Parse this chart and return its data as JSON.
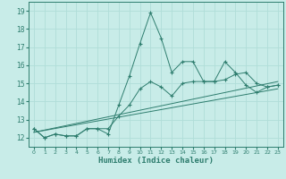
{
  "xlabel": "Humidex (Indice chaleur)",
  "xlim": [
    -0.5,
    23.5
  ],
  "ylim": [
    11.5,
    19.5
  ],
  "yticks": [
    12,
    13,
    14,
    15,
    16,
    17,
    18,
    19
  ],
  "xticks": [
    0,
    1,
    2,
    3,
    4,
    5,
    6,
    7,
    8,
    9,
    10,
    11,
    12,
    13,
    14,
    15,
    16,
    17,
    18,
    19,
    20,
    21,
    22,
    23
  ],
  "bg_color": "#c8ece8",
  "line_color": "#2e7d6e",
  "grid_color": "#b0ddd8",
  "lines": [
    {
      "x": [
        0,
        1,
        2,
        3,
        4,
        5,
        6,
        7,
        8,
        9,
        10,
        11,
        12,
        13,
        14,
        15,
        16,
        17,
        18,
        19,
        20,
        21,
        22,
        23
      ],
      "y": [
        12.5,
        12.0,
        12.2,
        12.1,
        12.1,
        12.5,
        12.5,
        12.2,
        13.8,
        15.4,
        17.2,
        18.9,
        17.5,
        15.6,
        16.2,
        16.2,
        15.1,
        15.1,
        16.2,
        15.6,
        14.9,
        14.5,
        14.8,
        14.9
      ],
      "marker": "+"
    },
    {
      "x": [
        0,
        1,
        2,
        3,
        4,
        5,
        6,
        7,
        8,
        9,
        10,
        11,
        12,
        13,
        14,
        15,
        16,
        17,
        18,
        19,
        20,
        21,
        22,
        23
      ],
      "y": [
        12.5,
        12.0,
        12.2,
        12.1,
        12.1,
        12.5,
        12.5,
        12.5,
        13.2,
        13.8,
        14.7,
        15.1,
        14.8,
        14.3,
        15.0,
        15.1,
        15.1,
        15.1,
        15.2,
        15.5,
        15.6,
        15.0,
        14.8,
        14.9
      ],
      "marker": "+"
    },
    {
      "x": [
        0,
        23
      ],
      "y": [
        12.3,
        14.7
      ],
      "marker": null
    },
    {
      "x": [
        0,
        23
      ],
      "y": [
        12.3,
        15.1
      ],
      "marker": null
    }
  ]
}
